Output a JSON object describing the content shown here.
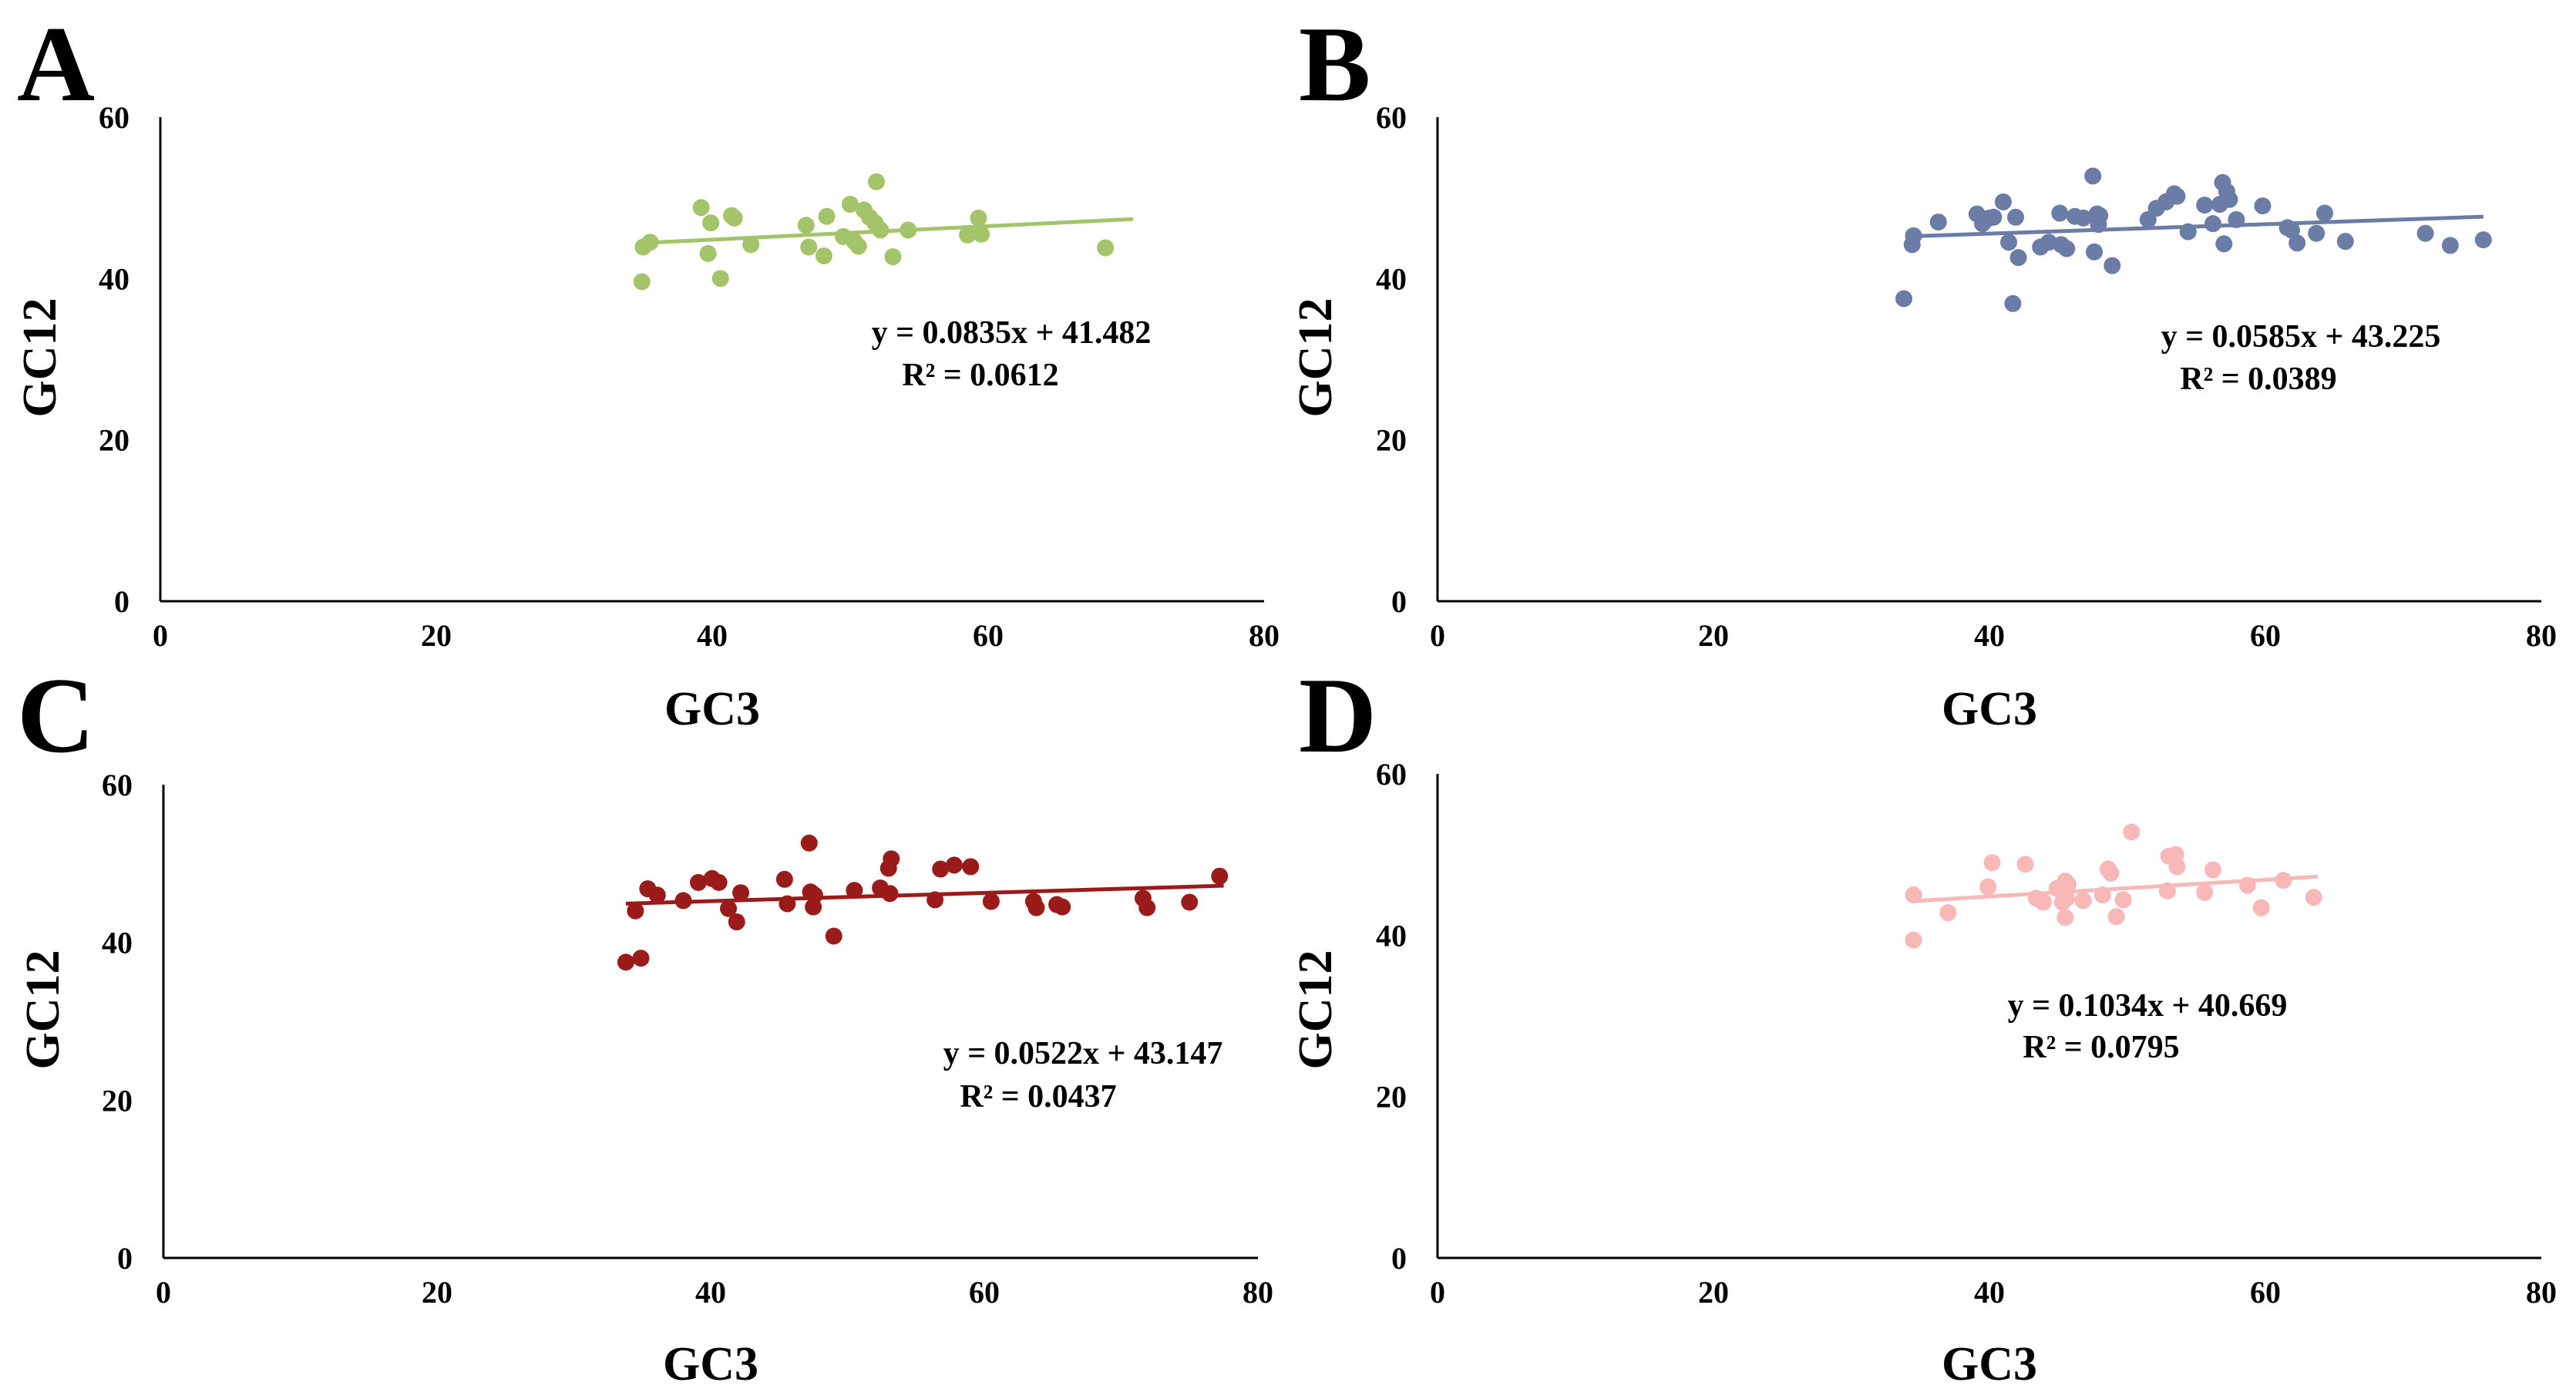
{
  "figure": {
    "panels_count": 4
  },
  "chart_data": [
    {
      "panel": "A",
      "type": "scatter",
      "title": "",
      "xlabel": "GC3",
      "ylabel": "GC12",
      "xlim": [
        0,
        80
      ],
      "ylim": [
        0,
        60
      ],
      "xticks": [
        0,
        20,
        40,
        60,
        80
      ],
      "yticks": [
        0,
        20,
        40,
        60
      ],
      "color": "#a3c468",
      "equation": "y = 0.0835x + 41.482",
      "r2": "R² = 0.0612",
      "trend": {
        "slope": 0.0835,
        "intercept": 41.482,
        "x_range": [
          34.8,
          70.5
        ]
      },
      "series": [
        {
          "name": "A",
          "x": [
            34.9,
            35.0,
            35.5,
            39.2,
            39.7,
            39.9,
            40.6,
            41.4,
            41.6,
            42.8,
            46.8,
            47.0,
            48.1,
            48.3,
            49.5,
            50.0,
            50.3,
            50.6,
            51.0,
            51.4,
            51.8,
            51.9,
            52.2,
            53.1,
            54.2,
            58.5,
            59.3,
            59.5,
            68.5
          ],
          "y": [
            39.6,
            43.9,
            44.5,
            48.8,
            43.1,
            46.9,
            40.0,
            47.8,
            47.5,
            44.2,
            46.6,
            43.9,
            42.8,
            47.7,
            45.2,
            49.2,
            44.6,
            44.0,
            48.5,
            47.6,
            46.9,
            52.0,
            46.0,
            42.7,
            46.0,
            45.4,
            47.5,
            45.5,
            43.8
          ]
        }
      ]
    },
    {
      "panel": "B",
      "type": "scatter",
      "title": "",
      "xlabel": "GC3",
      "ylabel": "GC12",
      "xlim": [
        0,
        80
      ],
      "ylim": [
        0,
        60
      ],
      "xticks": [
        0,
        20,
        40,
        60,
        80
      ],
      "yticks": [
        0,
        20,
        40,
        60
      ],
      "color": "#6b7ca6",
      "equation": "y = 0.0585x + 43.225",
      "r2": "R² = 0.0389",
      "trend": {
        "slope": 0.0585,
        "intercept": 43.225,
        "x_range": [
          34.0,
          75.8
        ]
      },
      "series": [
        {
          "name": "B",
          "x": [
            33.8,
            34.4,
            34.5,
            36.3,
            39.1,
            39.5,
            40.0,
            40.3,
            41.0,
            41.4,
            41.7,
            41.9,
            42.1,
            43.7,
            44.3,
            45.1,
            45.2,
            45.6,
            46.2,
            46.8,
            47.5,
            47.6,
            47.8,
            47.9,
            48.0,
            48.9,
            51.5,
            52.1,
            52.8,
            53.4,
            53.6,
            54.4,
            55.6,
            56.2,
            56.7,
            56.9,
            57.0,
            57.2,
            57.4,
            57.9,
            59.8,
            61.6,
            61.9,
            62.3,
            63.7,
            64.3,
            65.8,
            71.6,
            73.4,
            75.8
          ],
          "y": [
            37.5,
            44.2,
            45.3,
            47.0,
            48.0,
            46.8,
            47.5,
            47.6,
            49.5,
            44.5,
            36.9,
            47.6,
            42.6,
            43.9,
            44.5,
            48.1,
            44.2,
            43.7,
            47.7,
            47.5,
            52.7,
            43.3,
            48.0,
            46.7,
            47.8,
            41.6,
            47.3,
            48.7,
            49.5,
            50.5,
            50.2,
            45.8,
            49.1,
            46.8,
            49.2,
            51.9,
            44.3,
            50.8,
            49.8,
            47.3,
            49.0,
            46.3,
            46.0,
            44.4,
            45.6,
            48.1,
            44.6,
            45.6,
            44.1,
            44.8
          ]
        }
      ]
    },
    {
      "panel": "C",
      "type": "scatter",
      "title": "",
      "xlabel": "GC3",
      "ylabel": "GC12",
      "xlim": [
        0,
        80
      ],
      "ylim": [
        0,
        60
      ],
      "xticks": [
        0,
        20,
        40,
        60,
        80
      ],
      "yticks": [
        0,
        20,
        40,
        60
      ],
      "color": "#9b1b1b",
      "equation": "y = 0.0522x + 43.147",
      "r2": "R² = 0.0437",
      "trend": {
        "slope": 0.0522,
        "intercept": 43.147,
        "x_range": [
          33.8,
          77.5
        ]
      },
      "series": [
        {
          "name": "C",
          "x": [
            33.8,
            34.5,
            34.9,
            35.4,
            36.1,
            38.0,
            39.1,
            40.1,
            40.6,
            41.3,
            41.9,
            42.2,
            45.4,
            45.6,
            47.2,
            47.3,
            47.5,
            47.6,
            49.0,
            50.5,
            52.4,
            53.0,
            53.1,
            53.2,
            56.4,
            56.8,
            57.8,
            59.0,
            60.5,
            63.6,
            63.8,
            65.3,
            65.7,
            71.6,
            71.9,
            75.0,
            77.2
          ],
          "y": [
            37.5,
            44.0,
            38.0,
            46.8,
            46.0,
            45.3,
            47.6,
            48.1,
            47.6,
            44.3,
            42.6,
            46.3,
            48.0,
            44.9,
            52.6,
            46.4,
            44.5,
            46.0,
            40.8,
            46.6,
            46.9,
            49.4,
            46.2,
            50.6,
            45.4,
            49.3,
            49.8,
            49.6,
            45.2,
            45.2,
            44.4,
            44.8,
            44.5,
            45.6,
            44.4,
            45.1,
            48.4
          ]
        }
      ]
    },
    {
      "panel": "D",
      "type": "scatter",
      "title": "",
      "xlabel": "GC3",
      "ylabel": "GC12",
      "xlim": [
        0,
        80
      ],
      "ylim": [
        0,
        60
      ],
      "xticks": [
        0,
        20,
        40,
        60,
        80
      ],
      "yticks": [
        0,
        20,
        40,
        60
      ],
      "color": "#f8b8b8",
      "equation": "y = 0.1034x + 40.669",
      "r2": "R² = 0.0795",
      "trend": {
        "slope": 0.1034,
        "intercept": 40.669,
        "x_range": [
          34.3,
          63.8
        ]
      },
      "series": [
        {
          "name": "D",
          "x": [
            34.5,
            34.5,
            37.0,
            39.9,
            40.2,
            42.6,
            43.4,
            43.9,
            44.9,
            45.3,
            45.5,
            45.5,
            45.6,
            45.7,
            46.8,
            48.2,
            48.6,
            48.8,
            49.2,
            49.7,
            50.3,
            52.9,
            53.0,
            53.5,
            53.6,
            55.6,
            56.2,
            58.7,
            59.7,
            61.3,
            63.5
          ],
          "y": [
            45.0,
            39.4,
            42.8,
            46.0,
            49.0,
            48.8,
            44.6,
            44.1,
            45.8,
            44.1,
            46.7,
            42.2,
            44.6,
            46.3,
            44.3,
            45.0,
            48.2,
            47.7,
            42.3,
            44.4,
            52.8,
            45.5,
            49.8,
            50.0,
            48.5,
            45.3,
            48.1,
            46.2,
            43.4,
            46.8,
            44.7
          ]
        }
      ]
    }
  ]
}
